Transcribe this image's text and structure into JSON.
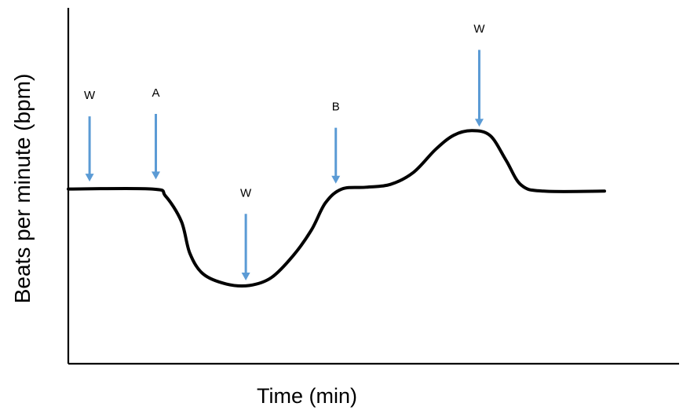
{
  "chart_data": {
    "type": "line",
    "title": "",
    "xlabel": "Time (min)",
    "ylabel": "Beats per minute (bpm)",
    "x_ticks": [],
    "y_ticks": [],
    "grid": false,
    "legend": "none",
    "xlim": [
      0,
      10
    ],
    "ylim": [
      0,
      10
    ],
    "series": [
      {
        "line_color": "#000000",
        "points": [
          [
            0.0,
            4.91
          ],
          [
            1.38,
            4.91
          ],
          [
            1.6,
            4.71
          ],
          [
            1.86,
            4.0
          ],
          [
            2.0,
            3.1
          ],
          [
            2.22,
            2.52
          ],
          [
            2.6,
            2.24
          ],
          [
            2.98,
            2.2
          ],
          [
            3.34,
            2.42
          ],
          [
            3.7,
            3.04
          ],
          [
            4.0,
            3.76
          ],
          [
            4.23,
            4.52
          ],
          [
            4.5,
            4.91
          ],
          [
            4.9,
            4.96
          ],
          [
            5.3,
            5.04
          ],
          [
            5.68,
            5.38
          ],
          [
            6.04,
            6.02
          ],
          [
            6.34,
            6.42
          ],
          [
            6.64,
            6.55
          ],
          [
            6.94,
            6.41
          ],
          [
            7.2,
            5.72
          ],
          [
            7.45,
            5.02
          ],
          [
            7.82,
            4.85
          ],
          [
            8.82,
            4.85
          ]
        ]
      }
    ],
    "annotations": [
      {
        "label": "W",
        "x": 0.35,
        "y_top": 6.95,
        "y_tip": 5.12
      },
      {
        "label": "A",
        "x": 1.44,
        "y_top": 7.02,
        "y_tip": 5.18
      },
      {
        "label": "W",
        "x": 2.92,
        "y_top": 4.21,
        "y_tip": 2.34
      },
      {
        "label": "B",
        "x": 4.4,
        "y_top": 6.63,
        "y_tip": 5.06
      },
      {
        "label": "W",
        "x": 6.76,
        "y_top": 8.82,
        "y_tip": 6.66
      }
    ],
    "colors": {
      "axis": "#000000",
      "line": "#000000",
      "arrow": "#5b9bd5",
      "background": "#ffffff"
    }
  }
}
